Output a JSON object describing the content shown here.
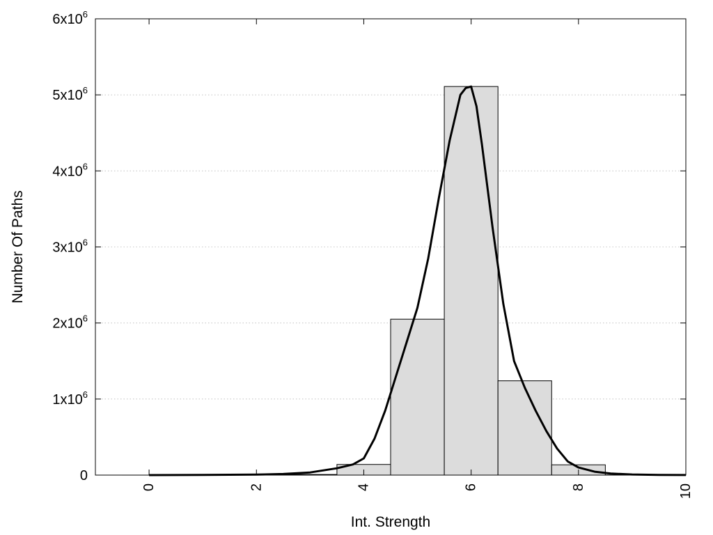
{
  "chart_data": {
    "type": "bar",
    "title": "",
    "xlabel": "Int. Strength",
    "ylabel": "Number Of Paths",
    "xlim": [
      -1,
      10
    ],
    "ylim": [
      0,
      6000000
    ],
    "grid": "y-dotted",
    "x_ticks": [
      {
        "value": 0,
        "label": "0"
      },
      {
        "value": 2,
        "label": "2"
      },
      {
        "value": 4,
        "label": "4"
      },
      {
        "value": 6,
        "label": "6"
      },
      {
        "value": 8,
        "label": "8"
      },
      {
        "value": 10,
        "label": "10"
      }
    ],
    "y_ticks": [
      {
        "value": 0,
        "label": "0"
      },
      {
        "value": 1000000,
        "label": "1x10",
        "exp": "6"
      },
      {
        "value": 2000000,
        "label": "2x10",
        "exp": "6"
      },
      {
        "value": 3000000,
        "label": "3x10",
        "exp": "6"
      },
      {
        "value": 4000000,
        "label": "4x10",
        "exp": "6"
      },
      {
        "value": 5000000,
        "label": "5x10",
        "exp": "6"
      },
      {
        "value": 6000000,
        "label": "6x10",
        "exp": "6"
      }
    ],
    "bars": [
      {
        "x": 0,
        "value": 0
      },
      {
        "x": 1,
        "value": 0
      },
      {
        "x": 2,
        "value": 2000
      },
      {
        "x": 3,
        "value": 8000
      },
      {
        "x": 4,
        "value": 140000
      },
      {
        "x": 5,
        "value": 2050000
      },
      {
        "x": 6,
        "value": 5110000
      },
      {
        "x": 7,
        "value": 1240000
      },
      {
        "x": 8,
        "value": 135000
      },
      {
        "x": 9,
        "value": 2000
      }
    ],
    "curve": {
      "x": [
        0,
        1,
        2,
        2.5,
        3,
        3.5,
        3.8,
        4,
        4.2,
        4.4,
        4.6,
        4.8,
        5,
        5.2,
        5.4,
        5.6,
        5.8,
        5.9,
        6,
        6.1,
        6.2,
        6.4,
        6.6,
        6.8,
        7,
        7.2,
        7.4,
        7.6,
        7.8,
        8,
        8.3,
        8.6,
        9,
        9.5,
        10
      ],
      "y": [
        0,
        2000,
        6000,
        15000,
        35000,
        90000,
        140000,
        220000,
        480000,
        850000,
        1300000,
        1750000,
        2200000,
        2850000,
        3650000,
        4400000,
        5000000,
        5090000,
        5110000,
        4850000,
        4350000,
        3250000,
        2250000,
        1500000,
        1150000,
        850000,
        580000,
        350000,
        180000,
        100000,
        45000,
        20000,
        8000,
        3000,
        1000
      ]
    }
  }
}
